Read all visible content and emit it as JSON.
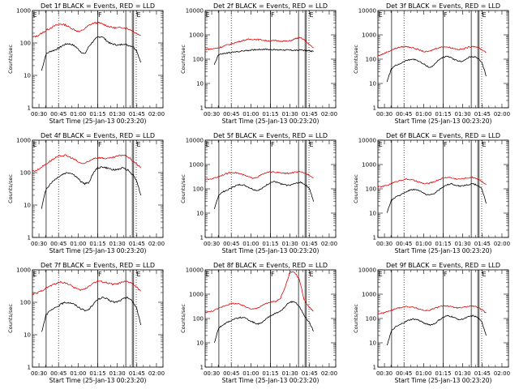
{
  "chart_data": [
    {
      "type": "line",
      "title": "Det 1f BLACK = Events, RED = LLD",
      "xlabel": "Start Time (25-Jan-13 00:23:20)",
      "ylabel": "Counts/sec",
      "red": "150,165,200,250,300,350,385,360,300,250,220,270,350,410,420,380,330,300,290,300,280,250,200,170",
      "black": "14,45,55,60,70,85,95,90,75,55,45,80,115,150,160,120,95,90,85,95,85,80,60,25",
      "gap_start": 5
    },
    {
      "type": "line",
      "title": "Det 2f BLACK = Events, RED = LLD",
      "xlabel": "Start Time (25-Jan-13 00:23:20)",
      "ylabel": "Counts/sec",
      "red": "260,260,270,290,330,380,420,480,540,600,650,660,650,620,580,560,580,560,560,540,600,720,760,600,400,290",
      "black": "60,150,165,175,185,195,205,215,225,235,245,250,255,255,250,245,240,245,240,235,235,230,240,230,220,205",
      "gap_start": 1
    },
    {
      "type": "line",
      "title": "Det 3f BLACK = Events, RED = LLD",
      "xlabel": "Start Time (25-Jan-13 00:23:20)",
      "ylabel": "Counts/sec",
      "red": "140,160,200,240,290,320,330,310,270,230,200,210,260,300,330,310,280,250,260,300,340,320,250,190",
      "black": "12,40,55,65,80,95,100,90,70,55,45,60,95,120,130,110,90,80,90,120,130,110,70,20",
      "gap_start": 4
    },
    {
      "type": "line",
      "title": "Det 4f BLACK = Events, RED = LLD",
      "xlabel": "Start Time (25-Jan-13 00:23:20)",
      "ylabel": "Counts/sec",
      "red": "110,120,150,190,240,290,330,340,300,250,200,190,220,280,290,280,270,290,320,350,330,250,190,140",
      "black": "8,30,45,60,75,90,100,95,75,55,45,50,100,140,150,140,130,120,130,140,120,90,60,20",
      "gap_start": 5
    },
    {
      "type": "line",
      "title": "Det 5f BLACK = Events, RED = LLD",
      "xlabel": "Start Time (25-Jan-13 00:23:20)",
      "ylabel": "Counts/sec",
      "red": "240,250,280,330,390,450,480,440,380,320,280,300,380,460,500,480,450,430,440,480,500,450,380,290",
      "black": "14,55,75,90,110,135,150,140,115,95,85,100,140,180,200,170,150,140,150,170,190,150,110,30",
      "gap_start": 5
    },
    {
      "type": "line",
      "title": "Det 6f BLACK = Events, RED = LLD",
      "xlabel": "Start Time (25-Jan-13 00:23:20)",
      "ylabel": "Counts/sec",
      "red": "120,125,140,170,200,230,250,240,210,180,160,170,200,240,280,300,270,250,260,280,300,270,210,150",
      "black": "10,35,45,55,70,85,95,90,75,60,55,65,90,120,150,160,140,130,140,150,160,140,100,25",
      "gap_start": 5
    },
    {
      "type": "line",
      "title": "Det 7f BLACK = Events, RED = LLD",
      "xlabel": "Start Time (25-Jan-13 00:23:20)",
      "ylabel": "Counts/sec",
      "red": "180,190,230,280,330,380,420,400,340,280,240,250,320,400,450,430,390,360,370,410,440,400,300,220",
      "black": "12,40,55,65,80,95,100,95,80,65,55,60,90,120,140,130,110,100,110,130,140,110,70,20",
      "gap_start": 4
    },
    {
      "type": "line",
      "title": "Det 8f BLACK = Events, RED = LLD",
      "xlabel": "Start Time (25-Jan-13 00:23:20)",
      "ylabel": "Counts/sec",
      "red": "180,190,220,270,330,380,420,400,340,280,250,260,330,420,480,500,700,2000,8000,8000,4000,600,300,200",
      "black": "10,40,55,70,85,100,110,105,85,70,60,65,95,130,160,180,260,400,500,450,250,120,70,30",
      "gap_start": 4
    },
    {
      "type": "line",
      "title": "Det 9f BLACK = Events, RED = LLD",
      "xlabel": "Start Time (25-Jan-13 00:23:20)",
      "ylabel": "Counts/sec",
      "red": "160,165,190,220,260,290,310,300,270,240,210,220,260,300,340,320,290,270,280,310,330,300,230,170",
      "black": "8,30,45,55,70,85,95,90,75,60,55,60,85,110,130,120,100,90,100,120,130,110,70,20",
      "gap_start": 4
    }
  ],
  "x_ticks": [
    "00:30",
    "00:45",
    "01:00",
    "01:15",
    "01:30",
    "01:45",
    "02:00"
  ],
  "y_ticks": [
    "1",
    "10",
    "100",
    "1000"
  ],
  "y_ticks_big": [
    "1",
    "10",
    "100",
    "1000",
    "10000"
  ],
  "marker_F": "F",
  "marker_E": "E",
  "colors": {
    "events": "#000000",
    "lld": "#e00000"
  }
}
